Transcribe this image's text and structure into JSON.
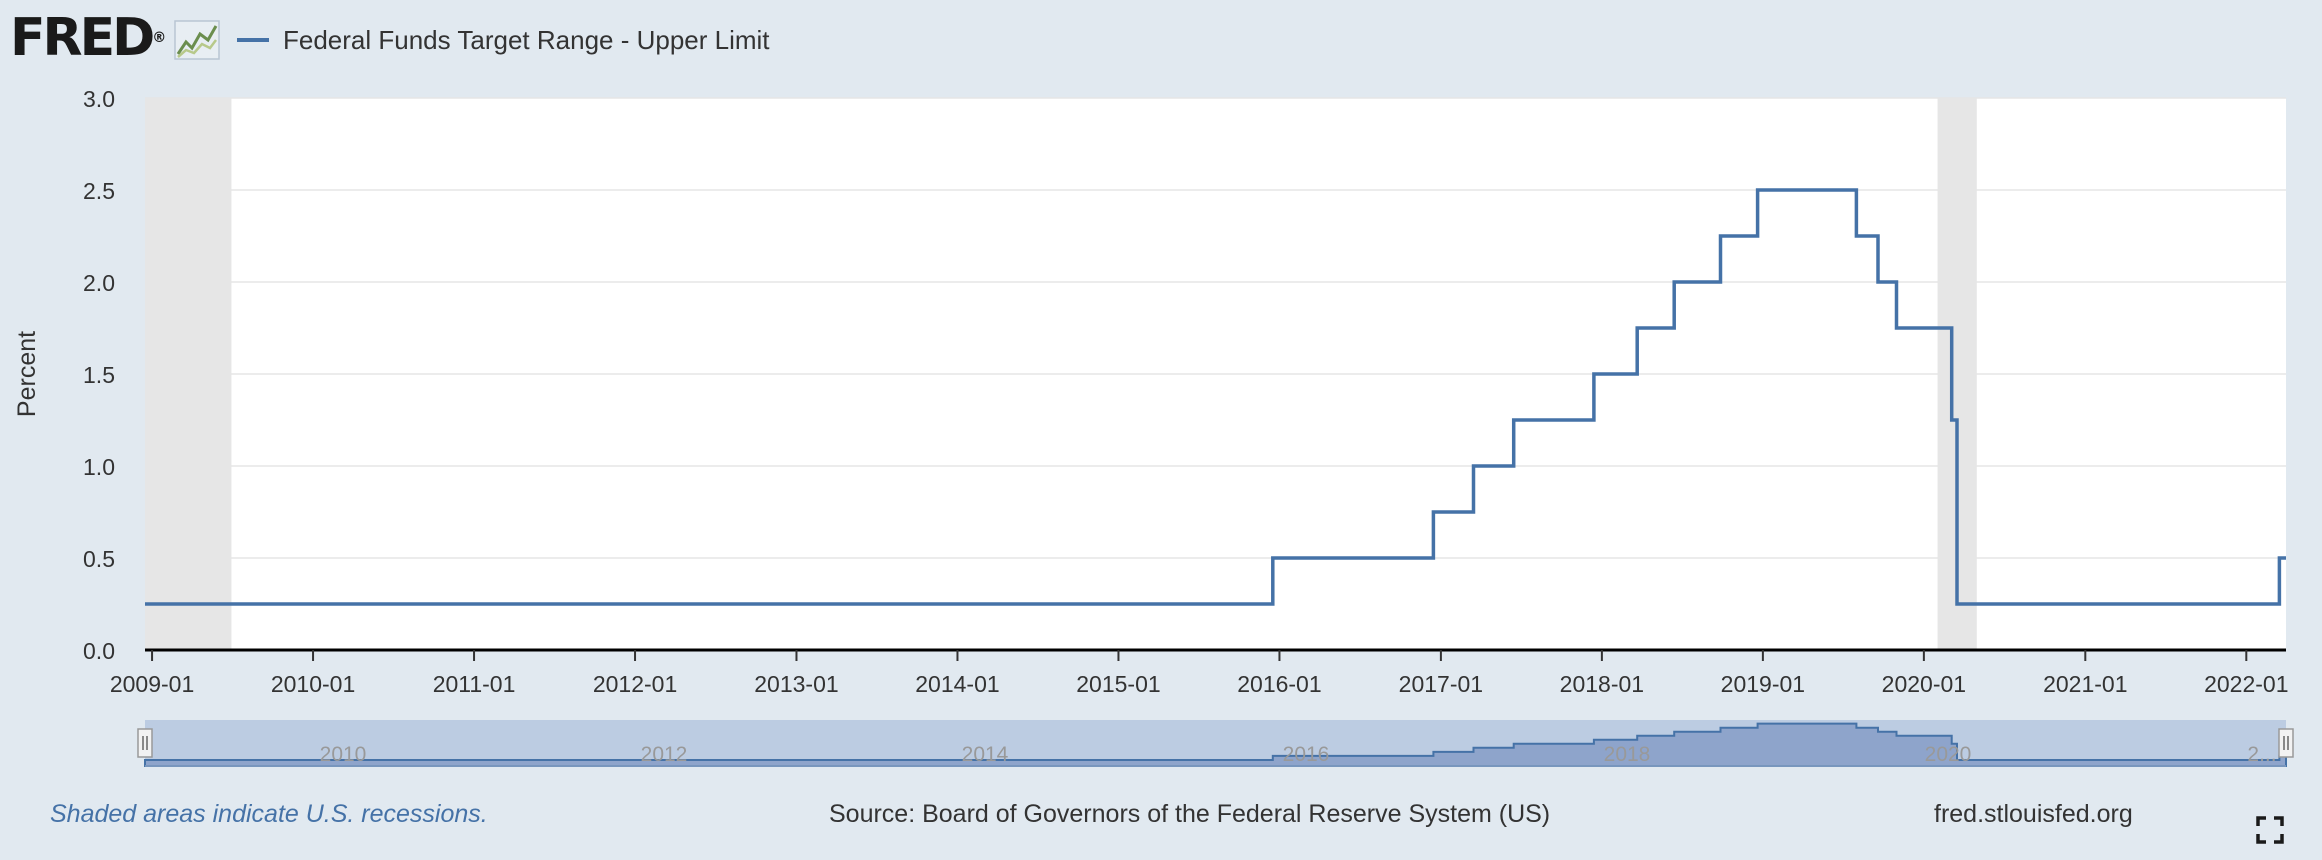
{
  "header": {
    "logo_text": "FRED",
    "logo_registered": "®",
    "icons": {
      "logo_graph": "line-chart-icon",
      "fullscreen": "expand-icon"
    }
  },
  "legend": {
    "label": "Federal Funds Target Range - Upper Limit",
    "color": "#4572a7"
  },
  "chart_data": {
    "type": "line",
    "step": true,
    "ylabel": "Percent",
    "ylim": [
      0,
      3.0
    ],
    "yticks": [
      "0.0",
      "0.5",
      "1.0",
      "1.5",
      "2.0",
      "2.5",
      "3.0"
    ],
    "xlim": [
      "2008-12-16",
      "2022-04-01"
    ],
    "xticks": [
      "2009-01",
      "2010-01",
      "2011-01",
      "2012-01",
      "2013-01",
      "2014-01",
      "2015-01",
      "2016-01",
      "2017-01",
      "2018-01",
      "2019-01",
      "2020-01",
      "2021-01",
      "2022-01"
    ],
    "grid": true,
    "series": [
      {
        "name": "Federal Funds Target Range - Upper Limit",
        "color": "#4572a7",
        "points": [
          [
            "2008-12-16",
            0.25
          ],
          [
            "2015-12-17",
            0.5
          ],
          [
            "2016-12-15",
            0.75
          ],
          [
            "2017-03-16",
            1.0
          ],
          [
            "2017-06-15",
            1.25
          ],
          [
            "2017-12-14",
            1.5
          ],
          [
            "2018-03-22",
            1.75
          ],
          [
            "2018-06-14",
            2.0
          ],
          [
            "2018-09-27",
            2.25
          ],
          [
            "2018-12-20",
            2.5
          ],
          [
            "2019-08-01",
            2.25
          ],
          [
            "2019-09-19",
            2.0
          ],
          [
            "2019-10-31",
            1.75
          ],
          [
            "2020-03-04",
            1.25
          ],
          [
            "2020-03-16",
            0.25
          ],
          [
            "2022-03-17",
            0.5
          ],
          [
            "2022-04-01",
            0.5
          ]
        ]
      }
    ],
    "recessions": [
      [
        "2008-12-16",
        "2009-06-30"
      ],
      [
        "2020-02-01",
        "2020-04-30"
      ]
    ],
    "navigator": {
      "labels": [
        "2010",
        "2012",
        "2014",
        "2016",
        "2018",
        "2020",
        "2..."
      ]
    }
  },
  "footer": {
    "recession_note": "Shaded areas indicate U.S. recessions.",
    "source": "Source: Board of Governors of the Federal Reserve System (US)",
    "site": "fred.stlouisfed.org"
  },
  "colors": {
    "background": "#e1e9f0",
    "plot_background": "#ffffff",
    "series": "#4572a7",
    "recession": "#e6e6e6",
    "navigator_fill": "#bccce2",
    "navigator_area": "#8ea4cb"
  }
}
